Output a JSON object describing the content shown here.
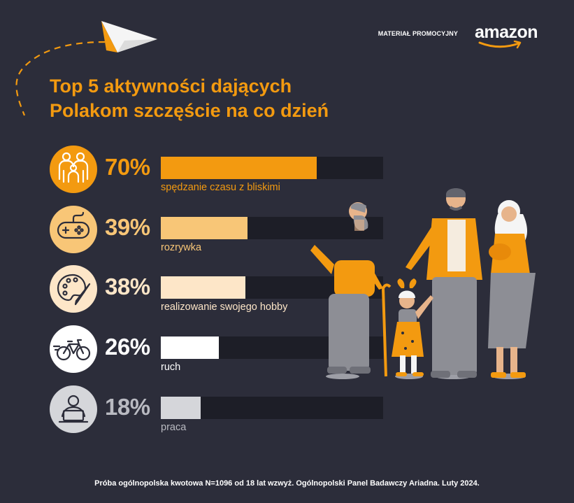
{
  "header": {
    "sponsor_label": "MATERIAŁ PROMOCYJNY",
    "brand_name": "amazon"
  },
  "title_lines": [
    "Top 5 aktywności dających",
    "Polakom szczęście na co dzień"
  ],
  "chart_data": {
    "type": "bar",
    "orientation": "horizontal",
    "title": "Top 5 aktywności dających Polakom szczęście na co dzień",
    "categories": [
      "spędzanie czasu z bliskimi",
      "rozrywka",
      "realizowanie swojego hobby",
      "ruch",
      "praca"
    ],
    "values": [
      70,
      39,
      38,
      26,
      18
    ],
    "value_labels": [
      "70%",
      "39%",
      "38%",
      "26%",
      "18%"
    ],
    "xlim": [
      0,
      100
    ],
    "bar_colors": [
      "#f39a10",
      "#f8c677",
      "#fde6c8",
      "#ffffff",
      "#d5d6da"
    ],
    "label_colors": [
      "#f39a10",
      "#f8c677",
      "#fde6c8",
      "#ffffff",
      "#b9bac1"
    ],
    "icons": [
      "family-icon",
      "gamepad-icon",
      "palette-icon",
      "bicycle-icon",
      "laptop-worker-icon"
    ]
  },
  "footnote": "Próba ogólnopolska kwotowa N=1096 od 18 lat wzwyż. Ogólnopolski Panel Badawczy Ariadna. Luty 2024."
}
